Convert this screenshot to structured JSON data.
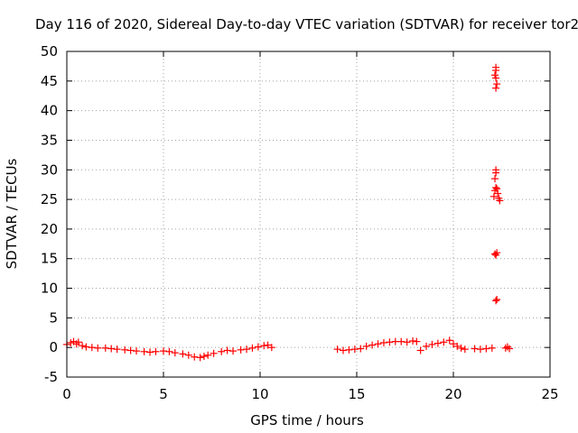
{
  "chart_data": {
    "type": "scatter",
    "title": "Day 116 of 2020, Sidereal Day-to-day VTEC variation (SDTVAR) for receiver tor2",
    "xlabel": "GPS time / hours",
    "ylabel": "SDTVAR / TECUs",
    "xlim": [
      0,
      25
    ],
    "ylim": [
      -5,
      50
    ],
    "xticks": [
      0,
      5,
      10,
      15,
      20,
      25
    ],
    "yticks": [
      -5,
      0,
      5,
      10,
      15,
      20,
      25,
      30,
      35,
      40,
      45,
      50
    ],
    "grid": true,
    "marker": "+",
    "color": "#ff0000",
    "series": [
      {
        "name": "tor2",
        "points": [
          [
            0.0,
            0.5
          ],
          [
            0.2,
            0.8
          ],
          [
            0.35,
            1.0
          ],
          [
            0.5,
            0.6
          ],
          [
            0.6,
            0.9
          ],
          [
            0.8,
            0.3
          ],
          [
            1.0,
            0.1
          ],
          [
            1.3,
            0.0
          ],
          [
            1.6,
            -0.1
          ],
          [
            2.0,
            -0.1
          ],
          [
            2.3,
            -0.2
          ],
          [
            2.6,
            -0.3
          ],
          [
            3.0,
            -0.4
          ],
          [
            3.3,
            -0.5
          ],
          [
            3.6,
            -0.6
          ],
          [
            4.0,
            -0.7
          ],
          [
            4.3,
            -0.8
          ],
          [
            4.6,
            -0.7
          ],
          [
            5.0,
            -0.6
          ],
          [
            5.3,
            -0.7
          ],
          [
            5.6,
            -0.9
          ],
          [
            6.0,
            -1.1
          ],
          [
            6.3,
            -1.3
          ],
          [
            6.6,
            -1.6
          ],
          [
            6.9,
            -1.7
          ],
          [
            7.1,
            -1.5
          ],
          [
            7.3,
            -1.3
          ],
          [
            7.6,
            -1.0
          ],
          [
            8.0,
            -0.7
          ],
          [
            8.3,
            -0.5
          ],
          [
            8.6,
            -0.6
          ],
          [
            9.0,
            -0.4
          ],
          [
            9.3,
            -0.3
          ],
          [
            9.6,
            -0.1
          ],
          [
            9.9,
            0.1
          ],
          [
            10.2,
            0.3
          ],
          [
            10.4,
            0.4
          ],
          [
            10.6,
            0.0
          ],
          [
            14.0,
            -0.3
          ],
          [
            14.3,
            -0.5
          ],
          [
            14.6,
            -0.4
          ],
          [
            14.9,
            -0.3
          ],
          [
            15.2,
            -0.2
          ],
          [
            15.5,
            0.2
          ],
          [
            15.8,
            0.4
          ],
          [
            16.1,
            0.6
          ],
          [
            16.4,
            0.8
          ],
          [
            16.7,
            0.9
          ],
          [
            17.0,
            1.0
          ],
          [
            17.3,
            1.0
          ],
          [
            17.6,
            0.9
          ],
          [
            17.9,
            1.1
          ],
          [
            18.1,
            1.0
          ],
          [
            18.3,
            -0.5
          ],
          [
            18.6,
            0.2
          ],
          [
            18.9,
            0.5
          ],
          [
            19.2,
            0.7
          ],
          [
            19.5,
            0.9
          ],
          [
            19.8,
            1.2
          ],
          [
            20.0,
            0.6
          ],
          [
            20.2,
            0.2
          ],
          [
            20.4,
            -0.1
          ],
          [
            20.6,
            -0.3
          ],
          [
            21.1,
            -0.2
          ],
          [
            21.4,
            -0.3
          ],
          [
            21.7,
            -0.2
          ],
          [
            22.0,
            -0.1
          ],
          [
            22.2,
            7.9
          ],
          [
            22.25,
            8.1
          ],
          [
            22.15,
            15.8
          ],
          [
            22.2,
            15.6
          ],
          [
            22.25,
            16.0
          ],
          [
            22.1,
            25.5
          ],
          [
            22.15,
            26.5
          ],
          [
            22.2,
            27.0
          ],
          [
            22.25,
            26.8
          ],
          [
            22.3,
            26.0
          ],
          [
            22.35,
            25.2
          ],
          [
            22.4,
            24.8
          ],
          [
            22.15,
            28.5
          ],
          [
            22.2,
            29.5
          ],
          [
            22.2,
            30.0
          ],
          [
            22.2,
            43.8
          ],
          [
            22.25,
            44.5
          ],
          [
            22.2,
            45.5
          ],
          [
            22.15,
            46.0
          ],
          [
            22.2,
            46.8
          ],
          [
            22.2,
            47.3
          ],
          [
            22.7,
            -0.1
          ],
          [
            22.8,
            0.1
          ],
          [
            22.9,
            -0.2
          ]
        ]
      }
    ]
  }
}
